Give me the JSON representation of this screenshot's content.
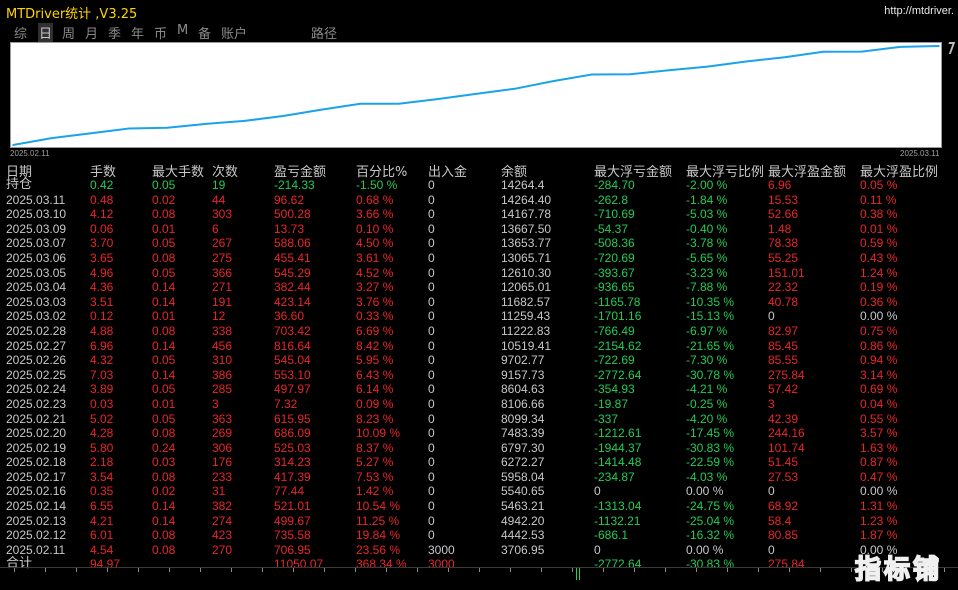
{
  "header": {
    "title": "MTDriver统计 ,V3.25",
    "url": "http://mtdriver."
  },
  "tabs": [
    {
      "label": "综",
      "active": false
    },
    {
      "label": "日",
      "active": true
    },
    {
      "label": "周",
      "active": false
    },
    {
      "label": "月",
      "active": false
    },
    {
      "label": "季",
      "active": false
    },
    {
      "label": "年",
      "active": false
    },
    {
      "label": "币",
      "active": false
    },
    {
      "label": "M",
      "active": false
    },
    {
      "label": "备",
      "active": false
    },
    {
      "label": "账户",
      "active": false
    },
    {
      "label": "路径",
      "active": false
    }
  ],
  "chart_data": {
    "type": "line",
    "x": [
      "2025.02.11",
      "2025.02.12",
      "2025.02.13",
      "2025.02.14",
      "2025.02.16",
      "2025.02.17",
      "2025.02.18",
      "2025.02.19",
      "2025.02.20",
      "2025.02.21",
      "2025.02.23",
      "2025.02.24",
      "2025.02.25",
      "2025.02.26",
      "2025.02.27",
      "2025.02.28",
      "2025.03.02",
      "2025.03.03",
      "2025.03.04",
      "2025.03.05",
      "2025.03.06",
      "2025.03.07",
      "2025.03.09",
      "2025.03.10",
      "2025.03.11"
    ],
    "series": [
      {
        "values": [
          3706.95,
          4442.53,
          4942.2,
          5463.21,
          5540.65,
          5958.04,
          6272.27,
          6797.3,
          7483.39,
          8099.34,
          8106.66,
          8604.63,
          9157.73,
          9702.77,
          10519.41,
          11222.83,
          11259.43,
          11682.57,
          12065.01,
          12610.3,
          13065.71,
          13653.77,
          13667.5,
          14167.78,
          14264.4
        ]
      }
    ],
    "x_start_label": "2025.02.11",
    "x_end_label": "2025.03.11",
    "line_color": "#1aa3e8",
    "grid": false
  },
  "table": {
    "columns": [
      "日期",
      "手数",
      "最大手数",
      "次数",
      "盈亏金额",
      "百分比%",
      "出入金",
      "余额",
      "最大浮亏金额",
      "最大浮亏比例",
      "最大浮盈金额",
      "最大浮盈比例"
    ],
    "holding": {
      "label": "持仓",
      "lots": "0.42",
      "maxlots": "0.05",
      "count": "19",
      "pnl": "-214.33",
      "pct": "-1.50 %",
      "io": "0",
      "bal": "14264.4",
      "mfl": "-284.70",
      "mflp": "-2.00 %",
      "mfp": "6.96",
      "mfpp": "0.05 %"
    },
    "rows": [
      {
        "date": "2025.03.11",
        "lots": "0.48",
        "maxlots": "0.02",
        "count": "44",
        "pnl": "96.62",
        "pct": "0.68 %",
        "io": "0",
        "bal": "14264.40",
        "mfl": "-262.8",
        "mflp": "-1.84 %",
        "mfp": "15.53",
        "mfpp": "0.11 %"
      },
      {
        "date": "2025.03.10",
        "lots": "4.12",
        "maxlots": "0.08",
        "count": "303",
        "pnl": "500.28",
        "pct": "3.66 %",
        "io": "0",
        "bal": "14167.78",
        "mfl": "-710.69",
        "mflp": "-5.03 %",
        "mfp": "52.66",
        "mfpp": "0.38 %"
      },
      {
        "date": "2025.03.09",
        "lots": "0.06",
        "maxlots": "0.01",
        "count": "6",
        "pnl": "13.73",
        "pct": "0.10 %",
        "io": "0",
        "bal": "13667.50",
        "mfl": "-54.37",
        "mflp": "-0.40 %",
        "mfp": "1.48",
        "mfpp": "0.01 %"
      },
      {
        "date": "2025.03.07",
        "lots": "3.70",
        "maxlots": "0.05",
        "count": "267",
        "pnl": "588.06",
        "pct": "4.50 %",
        "io": "0",
        "bal": "13653.77",
        "mfl": "-508.36",
        "mflp": "-3.78 %",
        "mfp": "78.38",
        "mfpp": "0.59 %"
      },
      {
        "date": "2025.03.06",
        "lots": "3.65",
        "maxlots": "0.08",
        "count": "275",
        "pnl": "455.41",
        "pct": "3.61 %",
        "io": "0",
        "bal": "13065.71",
        "mfl": "-720.69",
        "mflp": "-5.65 %",
        "mfp": "55.25",
        "mfpp": "0.43 %"
      },
      {
        "date": "2025.03.05",
        "lots": "4.96",
        "maxlots": "0.05",
        "count": "366",
        "pnl": "545.29",
        "pct": "4.52 %",
        "io": "0",
        "bal": "12610.30",
        "mfl": "-393.67",
        "mflp": "-3.23 %",
        "mfp": "151.01",
        "mfpp": "1.24 %"
      },
      {
        "date": "2025.03.04",
        "lots": "4.36",
        "maxlots": "0.14",
        "count": "271",
        "pnl": "382.44",
        "pct": "3.27 %",
        "io": "0",
        "bal": "12065.01",
        "mfl": "-936.65",
        "mflp": "-7.88 %",
        "mfp": "22.32",
        "mfpp": "0.19 %"
      },
      {
        "date": "2025.03.03",
        "lots": "3.51",
        "maxlots": "0.14",
        "count": "191",
        "pnl": "423.14",
        "pct": "3.76 %",
        "io": "0",
        "bal": "11682.57",
        "mfl": "-1165.78",
        "mflp": "-10.35 %",
        "mfp": "40.78",
        "mfpp": "0.36 %"
      },
      {
        "date": "2025.03.02",
        "lots": "0.12",
        "maxlots": "0.01",
        "count": "12",
        "pnl": "36.60",
        "pct": "0.33 %",
        "io": "0",
        "bal": "11259.43",
        "mfl": "-1701.16",
        "mflp": "-15.13 %",
        "mfp": "0",
        "mfpp": "0.00 %"
      },
      {
        "date": "2025.02.28",
        "lots": "4.88",
        "maxlots": "0.08",
        "count": "338",
        "pnl": "703.42",
        "pct": "6.69 %",
        "io": "0",
        "bal": "11222.83",
        "mfl": "-766.49",
        "mflp": "-6.97 %",
        "mfp": "82.97",
        "mfpp": "0.75 %"
      },
      {
        "date": "2025.02.27",
        "lots": "6.96",
        "maxlots": "0.14",
        "count": "456",
        "pnl": "816.64",
        "pct": "8.42 %",
        "io": "0",
        "bal": "10519.41",
        "mfl": "-2154.62",
        "mflp": "-21.65 %",
        "mfp": "85.45",
        "mfpp": "0.86 %"
      },
      {
        "date": "2025.02.26",
        "lots": "4.32",
        "maxlots": "0.05",
        "count": "310",
        "pnl": "545.04",
        "pct": "5.95 %",
        "io": "0",
        "bal": "9702.77",
        "mfl": "-722.69",
        "mflp": "-7.30 %",
        "mfp": "85.55",
        "mfpp": "0.94 %"
      },
      {
        "date": "2025.02.25",
        "lots": "7.03",
        "maxlots": "0.14",
        "count": "386",
        "pnl": "553.10",
        "pct": "6.43 %",
        "io": "0",
        "bal": "9157.73",
        "mfl": "-2772.64",
        "mflp": "-30.78 %",
        "mfp": "275.84",
        "mfpp": "3.14 %"
      },
      {
        "date": "2025.02.24",
        "lots": "3.89",
        "maxlots": "0.05",
        "count": "285",
        "pnl": "497.97",
        "pct": "6.14 %",
        "io": "0",
        "bal": "8604.63",
        "mfl": "-354.93",
        "mflp": "-4.21 %",
        "mfp": "57.42",
        "mfpp": "0.69 %"
      },
      {
        "date": "2025.02.23",
        "lots": "0.03",
        "maxlots": "0.01",
        "count": "3",
        "pnl": "7.32",
        "pct": "0.09 %",
        "io": "0",
        "bal": "8106.66",
        "mfl": "-19.87",
        "mflp": "-0.25 %",
        "mfp": "3",
        "mfpp": "0.04 %"
      },
      {
        "date": "2025.02.21",
        "lots": "5.02",
        "maxlots": "0.05",
        "count": "363",
        "pnl": "615.95",
        "pct": "8.23 %",
        "io": "0",
        "bal": "8099.34",
        "mfl": "-337",
        "mflp": "-4.20 %",
        "mfp": "42.39",
        "mfpp": "0.55 %"
      },
      {
        "date": "2025.02.20",
        "lots": "4.28",
        "maxlots": "0.08",
        "count": "269",
        "pnl": "686.09",
        "pct": "10.09 %",
        "io": "0",
        "bal": "7483.39",
        "mfl": "-1212.61",
        "mflp": "-17.45 %",
        "mfp": "244.16",
        "mfpp": "3.57 %"
      },
      {
        "date": "2025.02.19",
        "lots": "5.80",
        "maxlots": "0.24",
        "count": "306",
        "pnl": "525.03",
        "pct": "8.37 %",
        "io": "0",
        "bal": "6797.30",
        "mfl": "-1944.37",
        "mflp": "-30.83 %",
        "mfp": "101.74",
        "mfpp": "1.63 %"
      },
      {
        "date": "2025.02.18",
        "lots": "2.18",
        "maxlots": "0.03",
        "count": "176",
        "pnl": "314.23",
        "pct": "5.27 %",
        "io": "0",
        "bal": "6272.27",
        "mfl": "-1414.48",
        "mflp": "-22.59 %",
        "mfp": "51.45",
        "mfpp": "0.87 %"
      },
      {
        "date": "2025.02.17",
        "lots": "3.54",
        "maxlots": "0.08",
        "count": "233",
        "pnl": "417.39",
        "pct": "7.53 %",
        "io": "0",
        "bal": "5958.04",
        "mfl": "-234.87",
        "mflp": "-4.03 %",
        "mfp": "27.53",
        "mfpp": "0.47 %"
      },
      {
        "date": "2025.02.16",
        "lots": "0.35",
        "maxlots": "0.02",
        "count": "31",
        "pnl": "77.44",
        "pct": "1.42 %",
        "io": "0",
        "bal": "5540.65",
        "mfl": "0",
        "mflp": "0.00 %",
        "mfp": "0",
        "mfpp": "0.00 %"
      },
      {
        "date": "2025.02.14",
        "lots": "6.55",
        "maxlots": "0.14",
        "count": "382",
        "pnl": "521.01",
        "pct": "10.54 %",
        "io": "0",
        "bal": "5463.21",
        "mfl": "-1313.04",
        "mflp": "-24.75 %",
        "mfp": "68.92",
        "mfpp": "1.31 %"
      },
      {
        "date": "2025.02.13",
        "lots": "4.21",
        "maxlots": "0.14",
        "count": "274",
        "pnl": "499.67",
        "pct": "11.25 %",
        "io": "0",
        "bal": "4942.20",
        "mfl": "-1132.21",
        "mflp": "-25.04 %",
        "mfp": "58.4",
        "mfpp": "1.23 %"
      },
      {
        "date": "2025.02.12",
        "lots": "6.01",
        "maxlots": "0.08",
        "count": "423",
        "pnl": "735.58",
        "pct": "19.84 %",
        "io": "0",
        "bal": "4442.53",
        "mfl": "-686.1",
        "mflp": "-16.32 %",
        "mfp": "80.85",
        "mfpp": "1.87 %"
      },
      {
        "date": "2025.02.11",
        "lots": "4.54",
        "maxlots": "0.08",
        "count": "270",
        "pnl": "706.95",
        "pct": "23.56 %",
        "io": "3000",
        "bal": "3706.95",
        "mfl": "0",
        "mflp": "0.00 %",
        "mfp": "0",
        "mfpp": "0.00 %"
      }
    ],
    "total": {
      "label": "合计",
      "lots": "94.97",
      "maxlots": "",
      "count": "",
      "pnl": "11050.07",
      "pct": "368.34 %",
      "io": "3000",
      "bal": "",
      "mfl": "-2772.64",
      "mflp": "-30.83 %",
      "mfp": "275.84",
      "mfpp": ""
    }
  },
  "watermark": "指标铺",
  "colors": {
    "profit": "#e8262a",
    "loss": "#22cc55",
    "title": "#ffd400",
    "line": "#1aa3e8"
  }
}
